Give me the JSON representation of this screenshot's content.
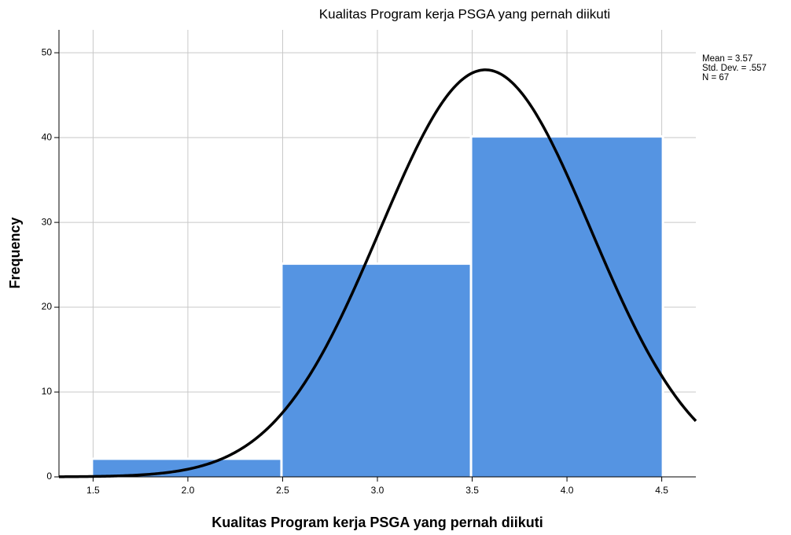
{
  "chart_data": {
    "type": "histogram",
    "title": "Kualitas Program kerja PSGA yang pernah diikuti",
    "x_label": "Kualitas Program kerja PSGA yang pernah diikuti",
    "y_label": "Frequency",
    "bins": [
      1.5,
      2.5,
      3.5,
      4.5
    ],
    "values": [
      2,
      25,
      40
    ],
    "color": "#5594e2",
    "xlim": [
      1.32,
      4.68
    ],
    "ylim": [
      0,
      52.7
    ],
    "xticks": [
      1.5,
      {
        "value": 2,
        "label": "2.0"
      },
      2.5,
      {
        "value": 3,
        "label": "3.0"
      },
      3.5,
      {
        "value": 4,
        "label": "4.0"
      },
      4.5
    ],
    "yticks": [
      0,
      10,
      20,
      30,
      40,
      50
    ],
    "grid": true,
    "stats": [
      {
        "value": 3.57,
        "label": "Mean = 3.57"
      },
      {
        "value": 0.557,
        "label": "Std. Dev. = .557"
      },
      {
        "value": 67,
        "label": "N = 67"
      }
    ],
    "curve": "normal"
  }
}
